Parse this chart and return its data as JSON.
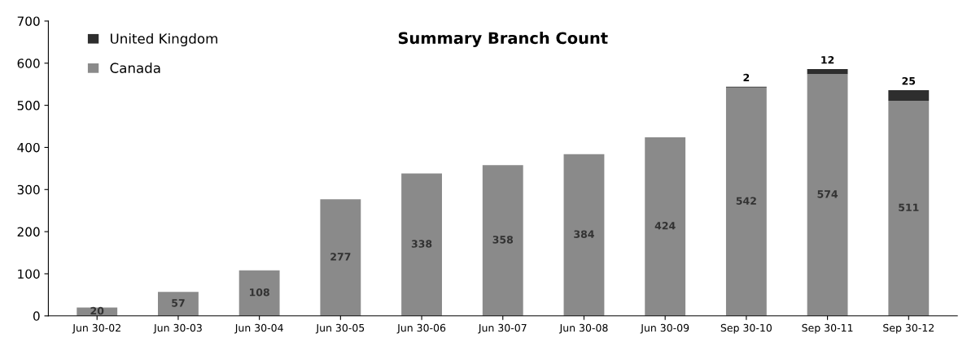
{
  "chart_data": {
    "type": "bar",
    "title": "Summary Branch Count",
    "stacked": true,
    "categories": [
      "Jun 30-02",
      "Jun 30-03",
      "Jun 30-04",
      "Jun 30-05",
      "Jun 30-06",
      "Jun 30-07",
      "Jun 30-08",
      "Jun 30-09",
      "Sep 30-10",
      "Sep 30-11",
      "Sep 30-12"
    ],
    "series": [
      {
        "name": "Canada",
        "color": "#8a8a8a",
        "values": [
          20,
          57,
          108,
          277,
          338,
          358,
          384,
          424,
          542,
          574,
          511
        ]
      },
      {
        "name": "United Kingdom",
        "color": "#2e2e2e",
        "values": [
          null,
          null,
          null,
          null,
          null,
          null,
          null,
          null,
          2,
          12,
          25
        ]
      }
    ],
    "ylim": [
      0,
      700
    ],
    "yticks": [
      0,
      100,
      200,
      300,
      400,
      500,
      600,
      700
    ],
    "data_labels": true,
    "grid": false,
    "legend": "top left"
  }
}
